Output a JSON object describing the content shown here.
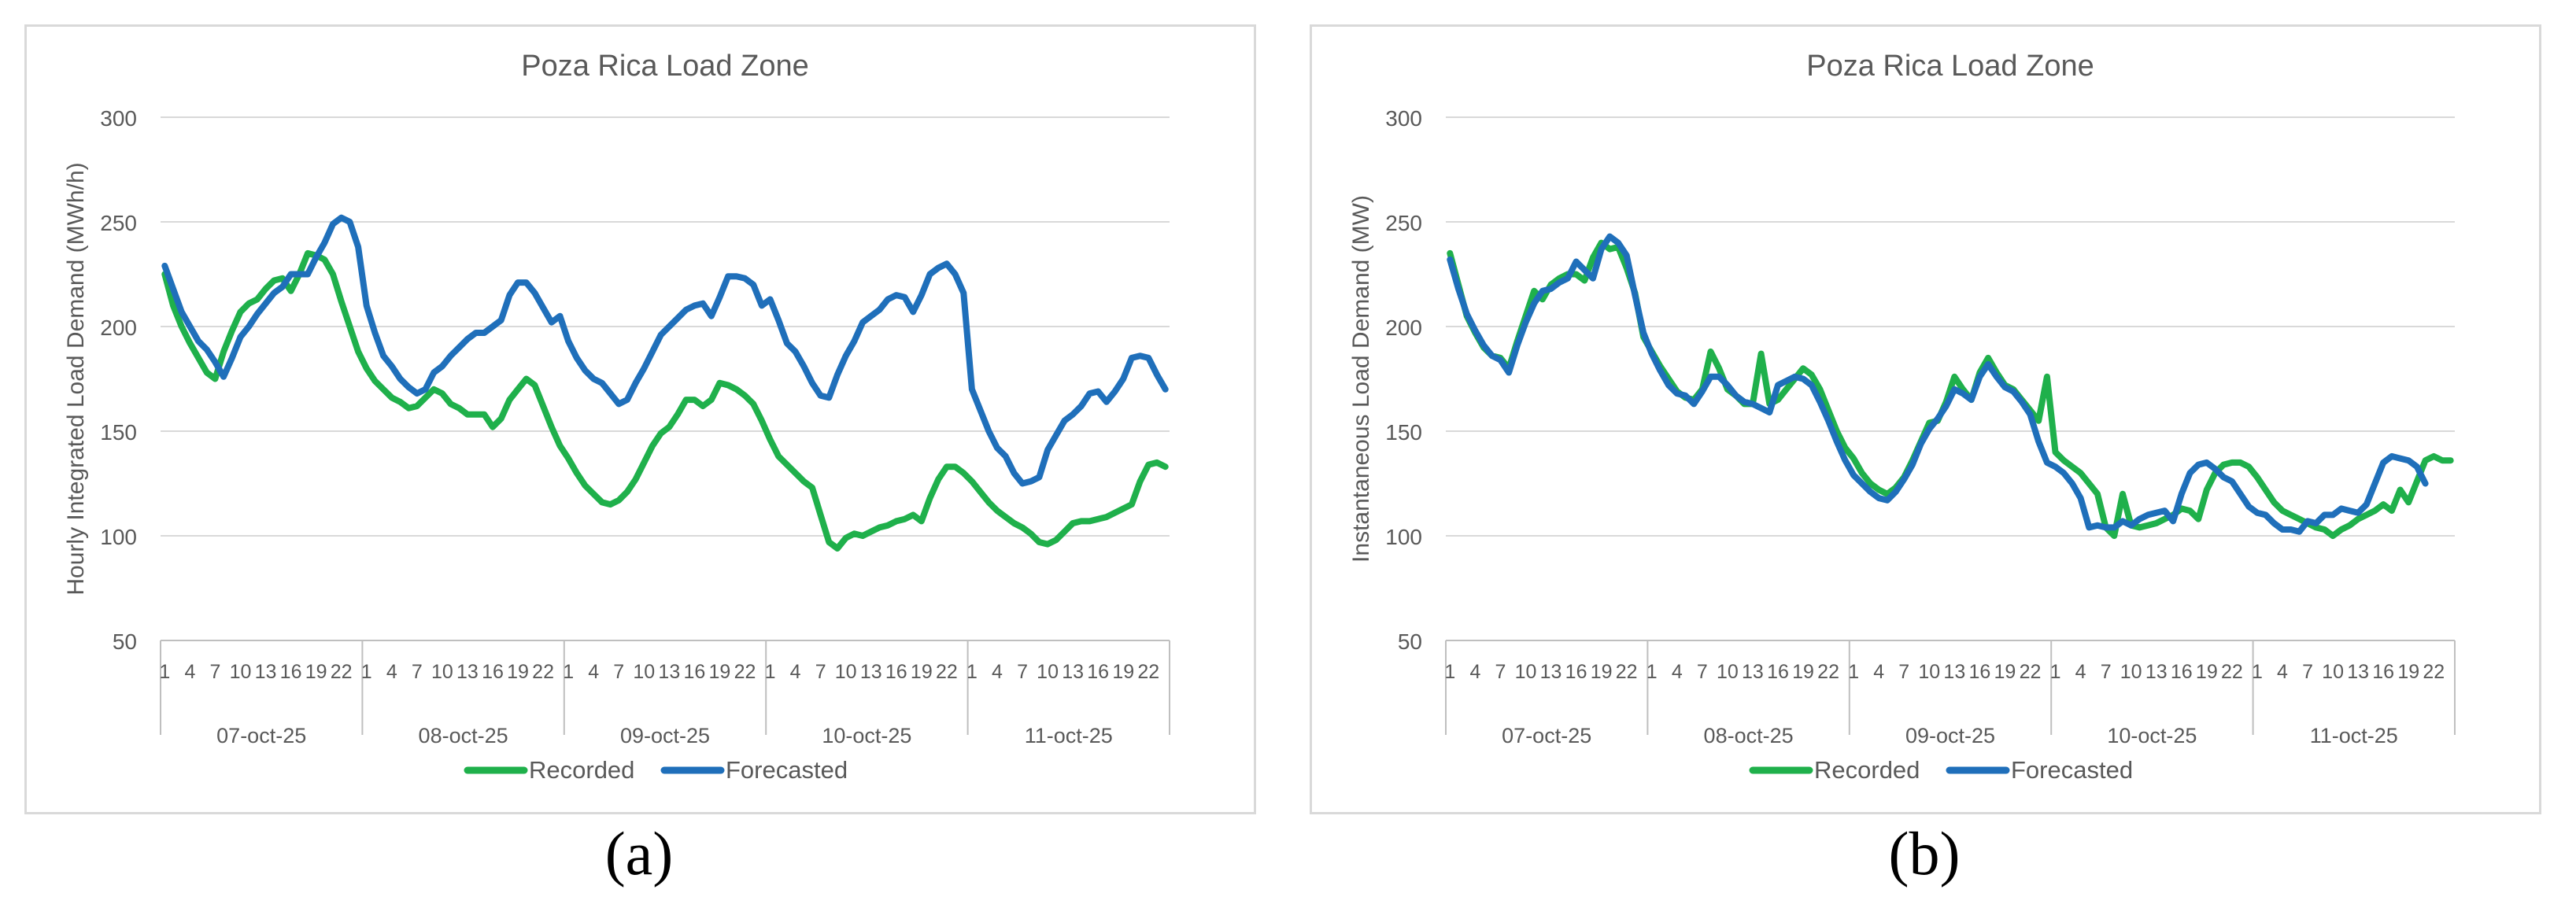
{
  "panels": [
    {
      "id": "a",
      "label": "(a)",
      "chart_data": {
        "type": "line",
        "title": "Poza Rica Load Zone",
        "xlabel": "",
        "ylabel": "Hourly Integrated Load Demand (MWh/h)",
        "ylim": [
          50,
          300
        ],
        "yticks": [
          50,
          100,
          150,
          200,
          250,
          300
        ],
        "grid": true,
        "legend": "bottom",
        "days": [
          "07-oct-25",
          "08-oct-25",
          "09-oct-25",
          "10-oct-25",
          "11-oct-25"
        ],
        "hour_ticks": [
          "1",
          "4",
          "7",
          "10",
          "13",
          "16",
          "19",
          "22"
        ],
        "hours_per_day": 24,
        "series": [
          {
            "name": "Recorded",
            "color": "#1fb04b",
            "values": [
              225,
              210,
              200,
              192,
              185,
              178,
              175,
              188,
              198,
              207,
              211,
              213,
              218,
              222,
              223,
              217,
              225,
              235,
              234,
              232,
              225,
              212,
              200,
              188,
              180,
              174,
              170,
              166,
              164,
              161,
              162,
              166,
              170,
              168,
              163,
              161,
              158,
              158,
              158,
              152,
              156,
              165,
              170,
              175,
              172,
              162,
              152,
              143,
              137,
              130,
              124,
              120,
              116,
              115,
              117,
              121,
              127,
              135,
              143,
              149,
              152,
              158,
              165,
              165,
              162,
              165,
              173,
              172,
              170,
              167,
              163,
              155,
              146,
              138,
              134,
              130,
              126,
              123,
              110,
              97,
              94,
              99,
              101,
              100,
              102,
              104,
              105,
              107,
              108,
              110,
              107,
              118,
              127,
              133,
              133,
              130,
              126,
              121,
              116,
              112,
              109,
              106,
              104,
              101,
              97,
              96,
              98,
              102,
              106,
              107,
              107,
              108,
              109,
              111,
              113,
              115,
              126,
              134,
              135,
              133,
              130,
              127,
              123
            ]
          },
          {
            "name": "Forecasted",
            "color": "#1f6fba",
            "values": [
              229,
              218,
              207,
              200,
              193,
              189,
              183,
              176,
              185,
              195,
              200,
              206,
              211,
              216,
              219,
              225,
              225,
              225,
              233,
              240,
              249,
              252,
              250,
              238,
              210,
              197,
              186,
              181,
              175,
              171,
              168,
              170,
              178,
              181,
              186,
              190,
              194,
              197,
              197,
              200,
              203,
              215,
              221,
              221,
              216,
              209,
              202,
              205,
              193,
              185,
              179,
              175,
              173,
              168,
              163,
              165,
              173,
              180,
              188,
              196,
              200,
              204,
              208,
              210,
              211,
              205,
              214,
              224,
              224,
              223,
              220,
              210,
              213,
              203,
              192,
              188,
              181,
              173,
              167,
              166,
              177,
              186,
              193,
              202,
              205,
              208,
              213,
              215,
              214,
              207,
              215,
              225,
              228,
              230,
              225,
              216,
              170,
              160,
              150,
              142,
              138,
              130,
              125,
              126,
              128,
              141,
              148,
              155,
              158,
              162,
              168,
              169,
              164,
              169,
              175,
              185,
              186,
              185,
              177,
              170
            ]
          }
        ]
      }
    },
    {
      "id": "b",
      "label": "(b)",
      "chart_data": {
        "type": "line",
        "title": "Poza Rica Load Zone",
        "xlabel": "",
        "ylabel": "Instantaneous Load Demand (MW)",
        "ylim": [
          50,
          300
        ],
        "yticks": [
          50,
          100,
          150,
          200,
          250,
          300
        ],
        "grid": true,
        "legend": "bottom",
        "days": [
          "07-oct-25",
          "08-oct-25",
          "09-oct-25",
          "10-oct-25",
          "11-oct-25"
        ],
        "hour_ticks": [
          "1",
          "4",
          "7",
          "10",
          "13",
          "16",
          "19",
          "22"
        ],
        "hours_per_day": 24,
        "series": [
          {
            "name": "Recorded",
            "color": "#1fb04b",
            "values": [
              235,
              220,
              205,
              197,
              190,
              186,
              185,
              180,
              193,
              205,
              217,
              213,
              220,
              223,
              225,
              225,
              222,
              233,
              240,
              237,
              238,
              228,
              216,
              195,
              188,
              181,
              175,
              169,
              166,
              165,
              170,
              188,
              180,
              170,
              167,
              163,
              163,
              187,
              163,
              165,
              170,
              175,
              180,
              177,
              170,
              160,
              150,
              142,
              137,
              130,
              125,
              122,
              120,
              123,
              128,
              136,
              145,
              154,
              155,
              164,
              176,
              170,
              165,
              178,
              185,
              178,
              172,
              170,
              165,
              160,
              155,
              176,
              140,
              136,
              133,
              130,
              125,
              120,
              104,
              100,
              120,
              105,
              104,
              105,
              106,
              108,
              110,
              113,
              112,
              108,
              122,
              130,
              134,
              135,
              135,
              133,
              128,
              122,
              116,
              112,
              110,
              108,
              106,
              104,
              103,
              100,
              103,
              105,
              108,
              110,
              112,
              115,
              112,
              122,
              116,
              126,
              136,
              138,
              136,
              136,
              139,
              127
            ]
          },
          {
            "name": "Forecasted",
            "color": "#1f6fba",
            "values": [
              232,
              218,
              206,
              198,
              191,
              186,
              184,
              178,
              191,
              202,
              211,
              217,
              218,
              221,
              223,
              231,
              227,
              223,
              237,
              243,
              240,
              234,
              215,
              197,
              187,
              179,
              172,
              168,
              167,
              163,
              169,
              176,
              176,
              172,
              167,
              164,
              163,
              161,
              159,
              172,
              174,
              176,
              175,
              172,
              164,
              155,
              145,
              136,
              129,
              125,
              121,
              118,
              117,
              121,
              127,
              134,
              144,
              151,
              156,
              162,
              170,
              168,
              165,
              176,
              182,
              176,
              171,
              169,
              164,
              158,
              145,
              135,
              133,
              130,
              125,
              118,
              104,
              105,
              104,
              104,
              107,
              105,
              108,
              110,
              111,
              112,
              107,
              120,
              130,
              134,
              135,
              132,
              128,
              126,
              120,
              114,
              111,
              110,
              106,
              103,
              103,
              102,
              107,
              106,
              110,
              110,
              113,
              112,
              111,
              115,
              125,
              135,
              138,
              137,
              136,
              133,
              125
            ]
          }
        ]
      }
    }
  ]
}
